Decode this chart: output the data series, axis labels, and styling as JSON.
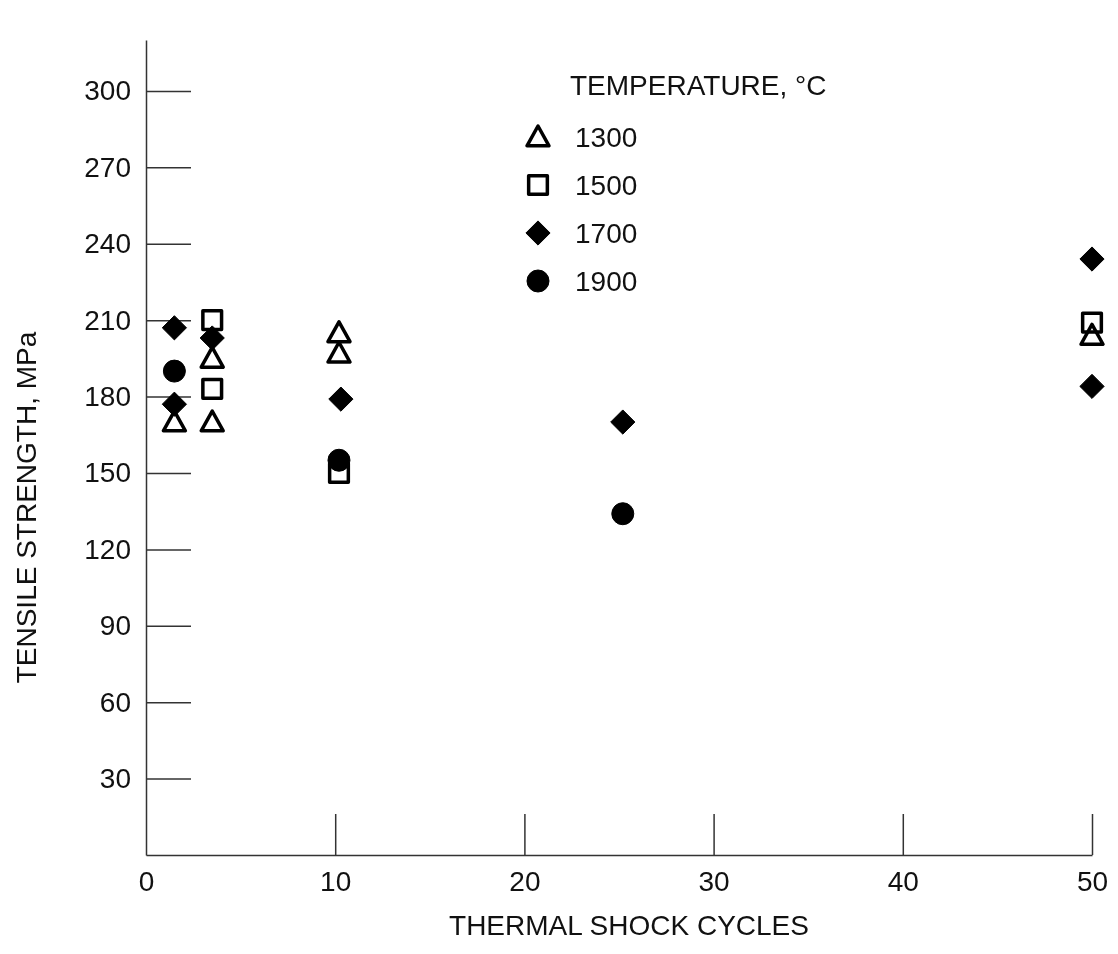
{
  "chart_data": {
    "type": "scatter",
    "xlabel": "THERMAL SHOCK CYCLES",
    "ylabel": "TENSILE STRENGTH, MPa",
    "legend_title": "TEMPERATURE, °C",
    "legend": "top right",
    "xlim": [
      0,
      50
    ],
    "ylim": [
      0,
      320
    ],
    "xticks": [
      0,
      10,
      20,
      30,
      40,
      50
    ],
    "yticks": [
      30,
      60,
      90,
      120,
      150,
      180,
      210,
      240,
      270,
      300
    ],
    "series": [
      {
        "name": "1300",
        "color": "#000000",
        "marker": "triangle",
        "x": [
          1.5,
          3.5,
          3.5,
          10.2,
          10.2,
          50
        ],
        "values": [
          170,
          195,
          170,
          205,
          197,
          204
        ]
      },
      {
        "name": "1500",
        "color": "#000000",
        "marker": "square",
        "x": [
          3.5,
          3.5,
          10.2,
          50
        ],
        "values": [
          210,
          183,
          150,
          209
        ]
      },
      {
        "name": "1700",
        "color": "#000000",
        "marker": "diamond",
        "x": [
          1.5,
          1.5,
          3.5,
          10.3,
          25.2,
          50,
          50
        ],
        "values": [
          207,
          177,
          203,
          179,
          170,
          234,
          184
        ]
      },
      {
        "name": "1900",
        "color": "#000000",
        "marker": "circle",
        "x": [
          1.5,
          10.2,
          25.2
        ],
        "values": [
          190,
          155,
          134
        ]
      }
    ]
  }
}
